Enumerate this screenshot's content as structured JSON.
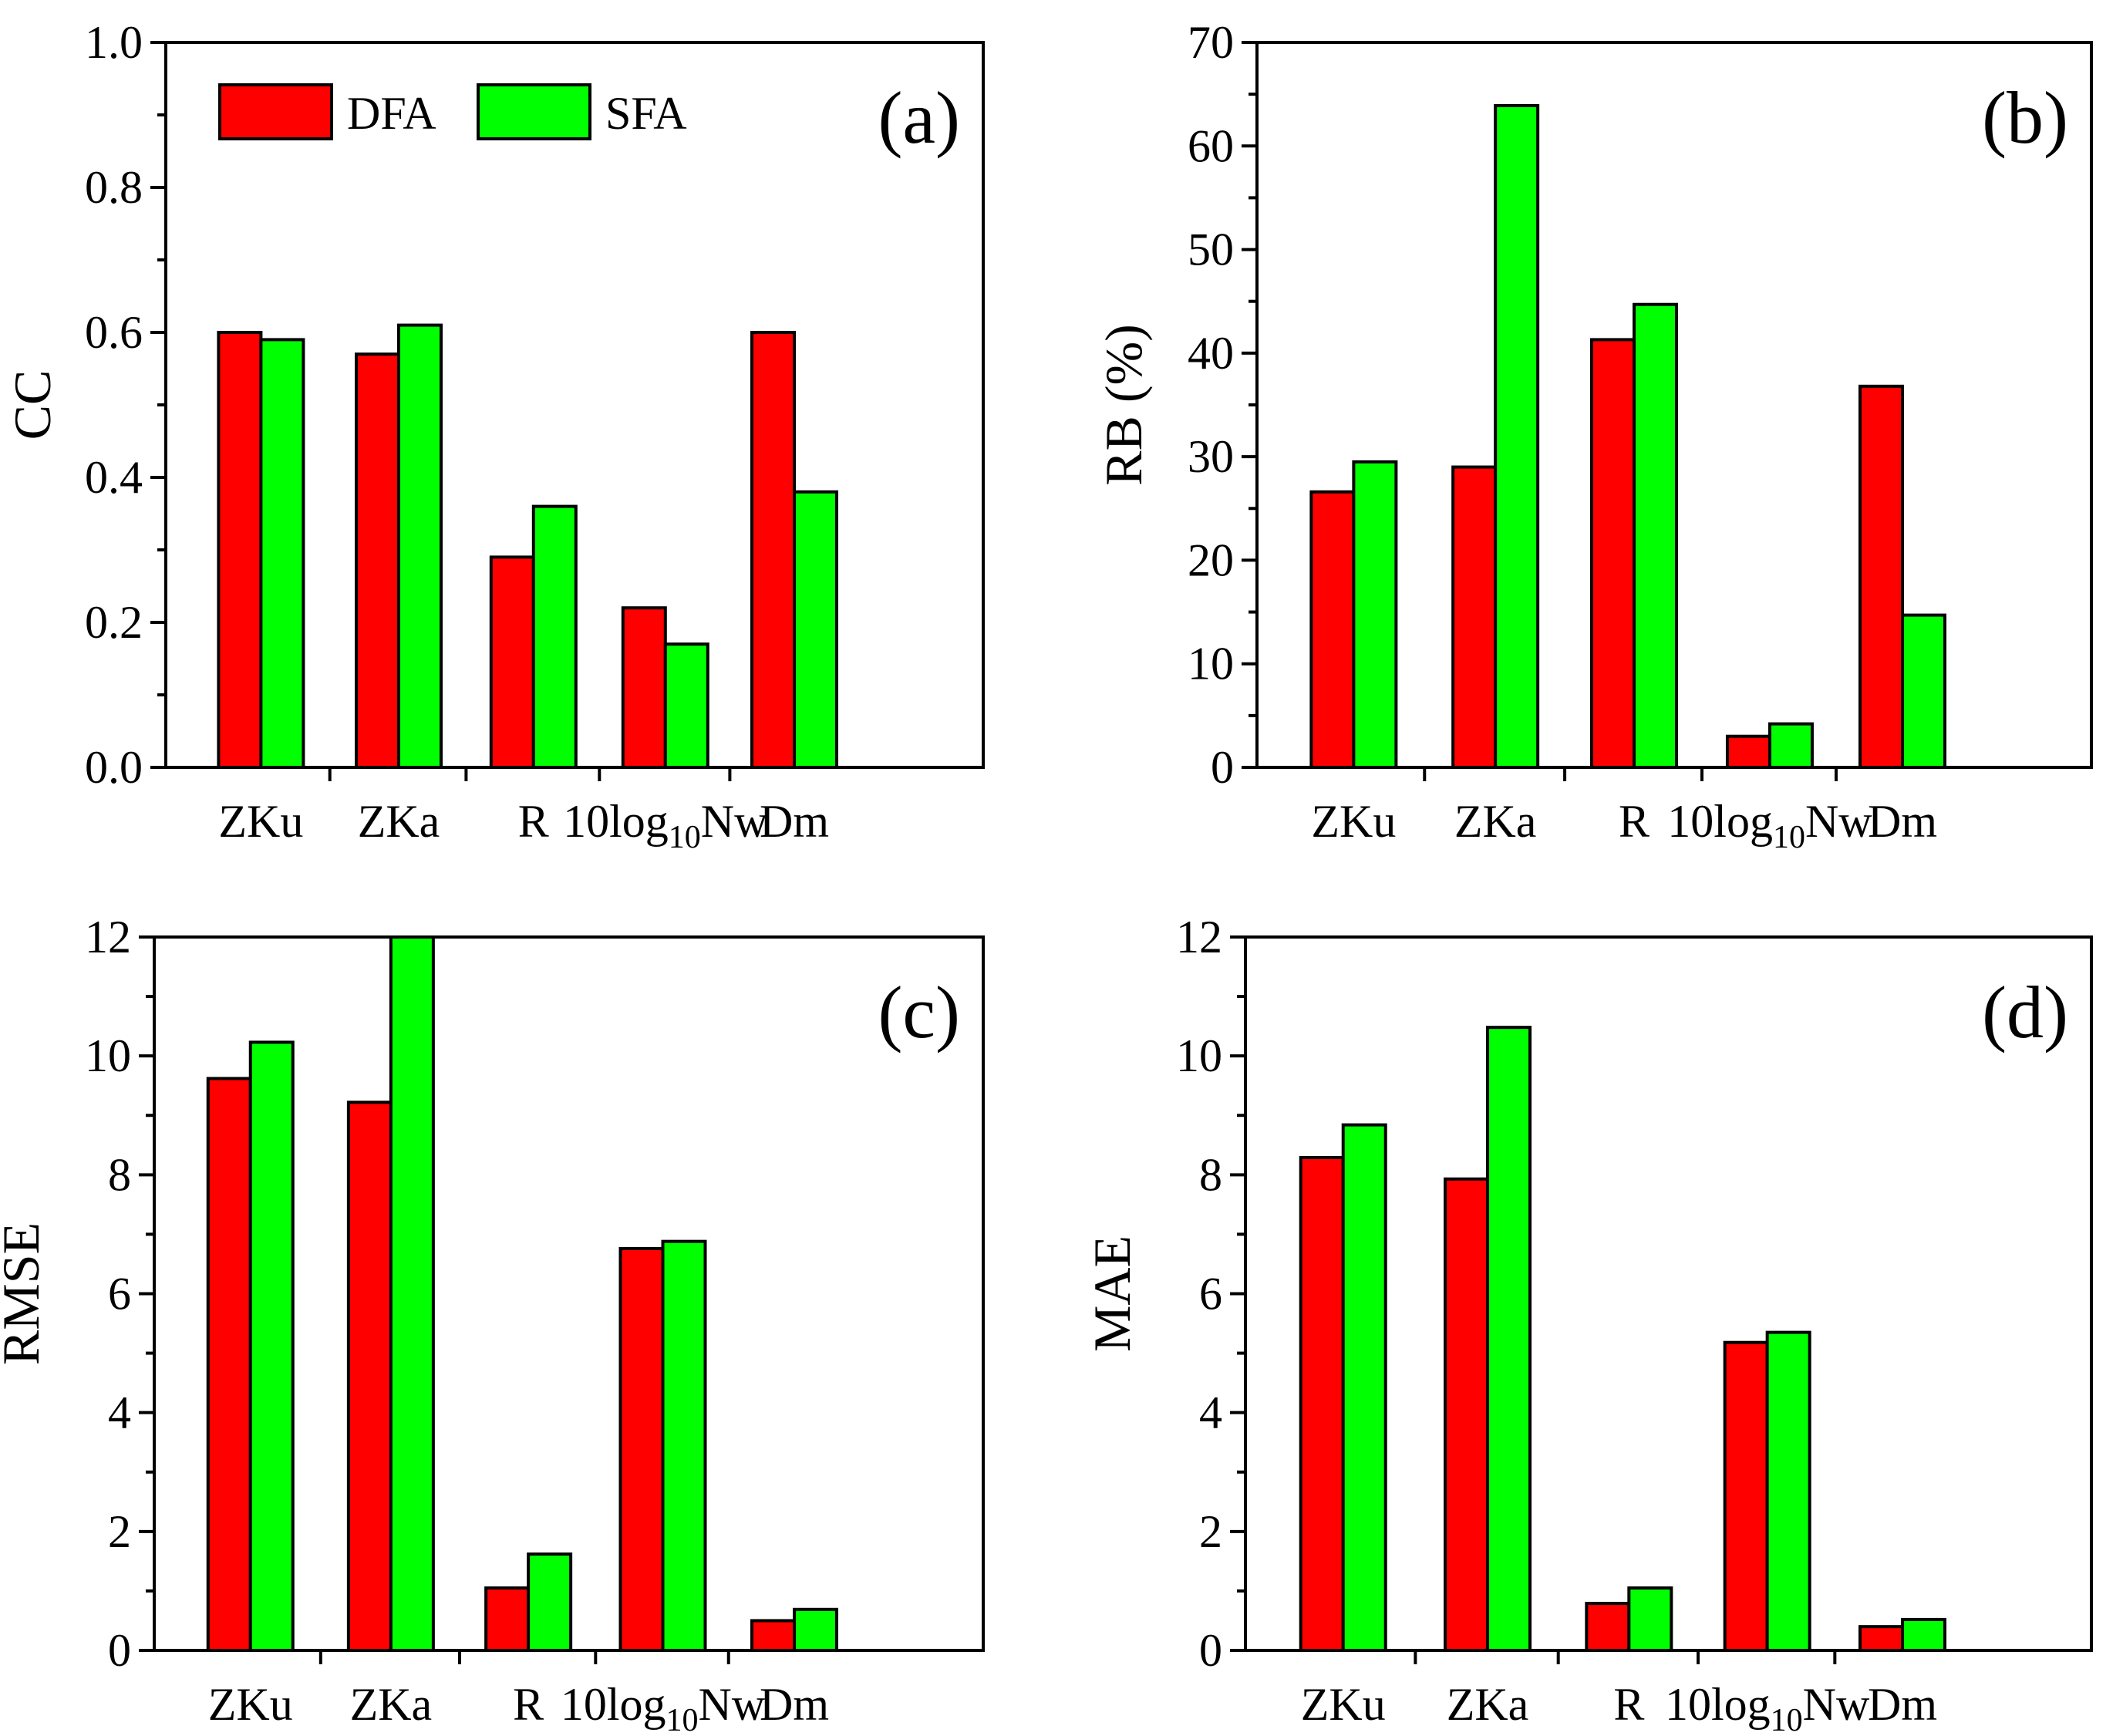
{
  "legend": [
    {
      "name": "DFA",
      "color": "#ff0000"
    },
    {
      "name": "SFA",
      "color": "#00ff00"
    }
  ],
  "chart_data": [
    {
      "type": "bar",
      "panel_label": "(a)",
      "ylabel": "CC",
      "ylim": [
        0,
        1.0
      ],
      "yticks": [
        "0.0",
        "0.2",
        "0.4",
        "0.6",
        "0.8",
        "1.0"
      ],
      "categories": [
        "ZKu",
        "ZKa",
        "R",
        "10log10Nw",
        "Dm"
      ],
      "series": [
        {
          "name": "DFA",
          "values": [
            0.6,
            0.57,
            0.29,
            0.22,
            0.6
          ]
        },
        {
          "name": "SFA",
          "values": [
            0.59,
            0.61,
            0.36,
            0.17,
            0.38
          ]
        }
      ],
      "legend_position": "top-left"
    },
    {
      "type": "bar",
      "panel_label": "(b)",
      "ylabel": "RB (%)",
      "ylim": [
        0,
        70
      ],
      "yticks": [
        "0",
        "10",
        "20",
        "30",
        "40",
        "50",
        "60",
        "70"
      ],
      "categories": [
        "ZKu",
        "ZKa",
        "R",
        "10log10Nw",
        "Dm"
      ],
      "series": [
        {
          "name": "DFA",
          "values": [
            26.6,
            29.0,
            41.3,
            3.0,
            36.8
          ]
        },
        {
          "name": "SFA",
          "values": [
            29.5,
            63.9,
            44.7,
            4.2,
            14.7
          ]
        }
      ]
    },
    {
      "type": "bar",
      "panel_label": "(c)",
      "ylabel": "RMSE",
      "ylim": [
        0,
        12
      ],
      "yticks": [
        "0",
        "2",
        "4",
        "6",
        "8",
        "10",
        "12"
      ],
      "categories": [
        "ZKu",
        "ZKa",
        "R",
        "10log10Nw",
        "Dm"
      ],
      "series": [
        {
          "name": "DFA",
          "values": [
            9.62,
            9.22,
            1.05,
            6.76,
            0.5
          ]
        },
        {
          "name": "SFA",
          "values": [
            10.23,
            12.0,
            1.62,
            6.88,
            0.69
          ]
        }
      ]
    },
    {
      "type": "bar",
      "panel_label": "(d)",
      "ylabel": "MAE",
      "ylim": [
        0,
        12
      ],
      "yticks": [
        "0",
        "2",
        "4",
        "6",
        "8",
        "10",
        "12"
      ],
      "categories": [
        "ZKu",
        "ZKa",
        "R",
        "10log10Nw",
        "Dm"
      ],
      "series": [
        {
          "name": "DFA",
          "values": [
            8.29,
            7.93,
            0.79,
            5.18,
            0.4
          ]
        },
        {
          "name": "SFA",
          "values": [
            8.84,
            10.48,
            1.05,
            5.35,
            0.52
          ]
        }
      ]
    }
  ]
}
